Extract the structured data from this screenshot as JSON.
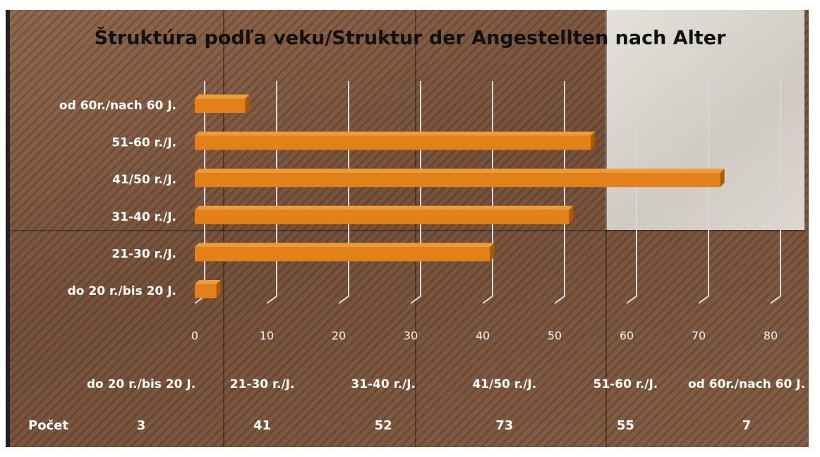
{
  "chart_data": {
    "type": "bar",
    "orientation": "horizontal",
    "title": "Štruktúra podľa veku/Struktur der Angestellten nach Alter",
    "categories": [
      "do 20 r./bis 20 J.",
      "21-30 r./J.",
      "31-40 r./J.",
      "41/50 r./J.",
      "51-60 r./J.",
      "od 60r./nach 60 J."
    ],
    "values": [
      3,
      41,
      52,
      73,
      55,
      7
    ],
    "color": "#e2801a",
    "xlim": [
      0,
      80
    ],
    "xticks": [
      0,
      10,
      20,
      30,
      40,
      50,
      60,
      70,
      80
    ],
    "grid": true,
    "table_row_label": "Počet"
  }
}
